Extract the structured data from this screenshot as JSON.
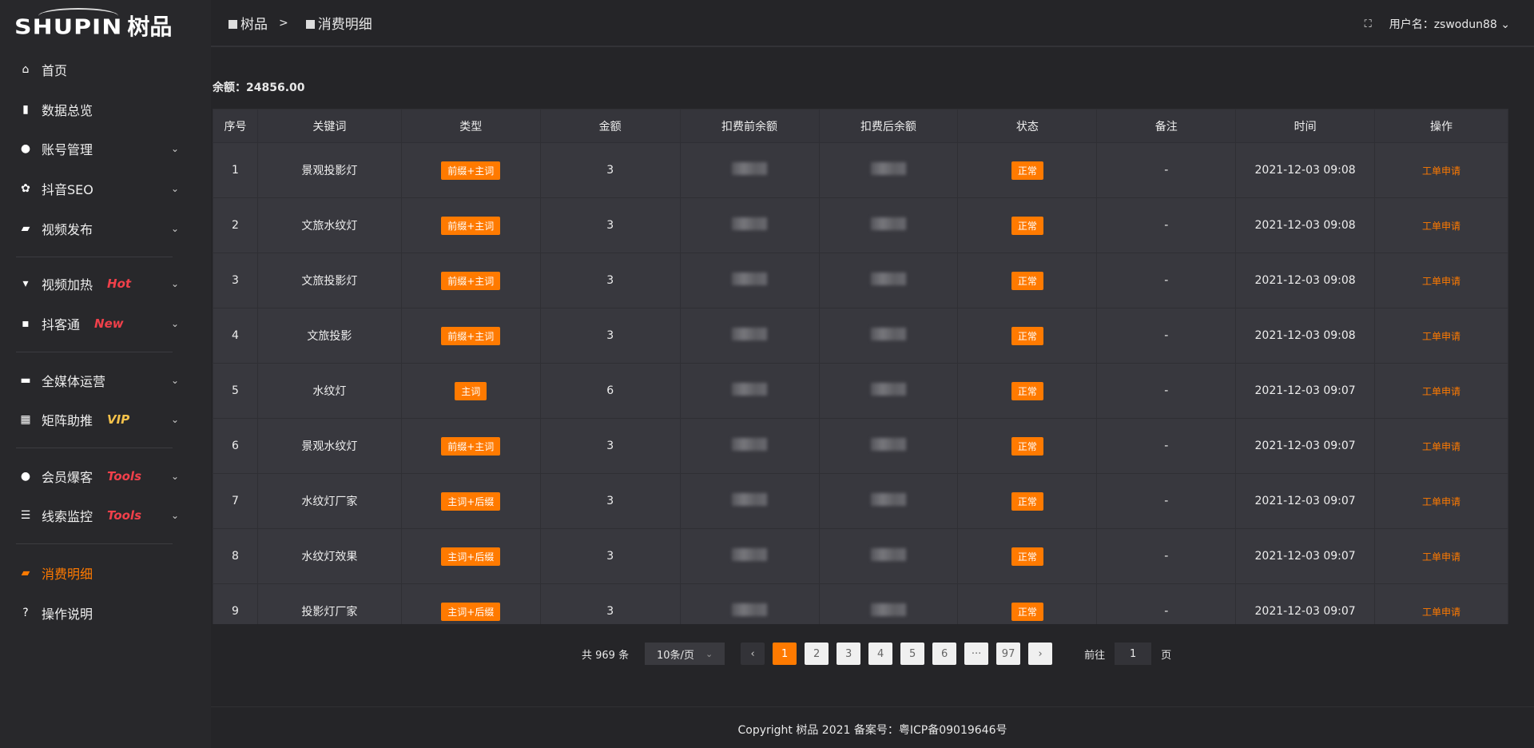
{
  "logo": {
    "en": "SHUPIN",
    "cn": "树品"
  },
  "sidebar": {
    "items": [
      {
        "label": "首页",
        "icon": "home-icon",
        "glyph": "⌂"
      },
      {
        "label": "数据总览",
        "icon": "bar-chart-icon",
        "glyph": "▮"
      },
      {
        "label": "账号管理",
        "icon": "user-icon",
        "glyph": "●",
        "chev": "⌄"
      },
      {
        "label": "抖音SEO",
        "icon": "gear-icon",
        "glyph": "✿",
        "chev": "⌄"
      },
      {
        "label": "视频发布",
        "icon": "video-icon",
        "glyph": "▰",
        "chev": "⌄"
      },
      {
        "label": "视频加热",
        "icon": "billboard-icon",
        "glyph": "▾",
        "chev": "⌄",
        "tag": "Hot"
      },
      {
        "label": "抖客通",
        "icon": "chat-icon",
        "glyph": "▪",
        "chev": "⌄",
        "tag": "New"
      },
      {
        "label": "全媒体运营",
        "icon": "monitor-icon",
        "glyph": "▬",
        "chev": "⌄"
      },
      {
        "label": "矩阵助推",
        "icon": "grid-icon",
        "glyph": "▦",
        "chev": "⌄",
        "tag": "VIP"
      },
      {
        "label": "会员爆客",
        "icon": "user-icon",
        "glyph": "●",
        "chev": "⌄",
        "tag": "Tools"
      },
      {
        "label": "线索监控",
        "icon": "sliders-icon",
        "glyph": "☰",
        "chev": "⌄",
        "tag": "Tools"
      },
      {
        "label": "消费明细",
        "icon": "wallet-icon",
        "glyph": "▰",
        "active": true
      },
      {
        "label": "操作说明",
        "icon": "help-icon",
        "glyph": "?"
      }
    ]
  },
  "colors": {
    "accent": "#ff7a00",
    "hot": "#f0404a",
    "vip": "#f5c24a"
  },
  "breadcrumb": {
    "root": "树品",
    "sep": ">",
    "current": "消费明细"
  },
  "user": {
    "label": "用户名：zswodun88",
    "chev": "⌄"
  },
  "balance": "余额：24856.00",
  "table": {
    "headers": [
      "序号",
      "关键词",
      "类型",
      "金额",
      "扣费前余额",
      "扣费后余额",
      "状态",
      "备注",
      "时间",
      "操作"
    ],
    "rows": [
      {
        "no": "1",
        "kw": "景观投影灯",
        "type": "前缀+主词",
        "amt": "3",
        "status": "正常",
        "note": "-",
        "time": "2021-12-03 09:08",
        "op": "工单申请"
      },
      {
        "no": "2",
        "kw": "文旅水纹灯",
        "type": "前缀+主词",
        "amt": "3",
        "status": "正常",
        "note": "-",
        "time": "2021-12-03 09:08",
        "op": "工单申请"
      },
      {
        "no": "3",
        "kw": "文旅投影灯",
        "type": "前缀+主词",
        "amt": "3",
        "status": "正常",
        "note": "-",
        "time": "2021-12-03 09:08",
        "op": "工单申请"
      },
      {
        "no": "4",
        "kw": "文旅投影",
        "type": "前缀+主词",
        "amt": "3",
        "status": "正常",
        "note": "-",
        "time": "2021-12-03 09:08",
        "op": "工单申请"
      },
      {
        "no": "5",
        "kw": "水纹灯",
        "type": "主词",
        "amt": "6",
        "status": "正常",
        "note": "-",
        "time": "2021-12-03 09:07",
        "op": "工单申请"
      },
      {
        "no": "6",
        "kw": "景观水纹灯",
        "type": "前缀+主词",
        "amt": "3",
        "status": "正常",
        "note": "-",
        "time": "2021-12-03 09:07",
        "op": "工单申请"
      },
      {
        "no": "7",
        "kw": "水纹灯厂家",
        "type": "主词+后缀",
        "amt": "3",
        "status": "正常",
        "note": "-",
        "time": "2021-12-03 09:07",
        "op": "工单申请"
      },
      {
        "no": "8",
        "kw": "水纹灯效果",
        "type": "主词+后缀",
        "amt": "3",
        "status": "正常",
        "note": "-",
        "time": "2021-12-03 09:07",
        "op": "工单申请"
      },
      {
        "no": "9",
        "kw": "投影灯厂家",
        "type": "主词+后缀",
        "amt": "3",
        "status": "正常",
        "note": "-",
        "time": "2021-12-03 09:07",
        "op": "工单申请"
      }
    ]
  },
  "pagination": {
    "total": "共 969 条",
    "size": "10条/页",
    "prev": "‹",
    "next": "›",
    "pages": [
      "1",
      "2",
      "3",
      "4",
      "5",
      "6",
      "···",
      "97"
    ],
    "current": "1",
    "goto_label": "前往",
    "goto_value": "1",
    "goto_suffix": "页"
  },
  "footer": "Copyright 树品 2021 备案号：粤ICP备09019646号"
}
